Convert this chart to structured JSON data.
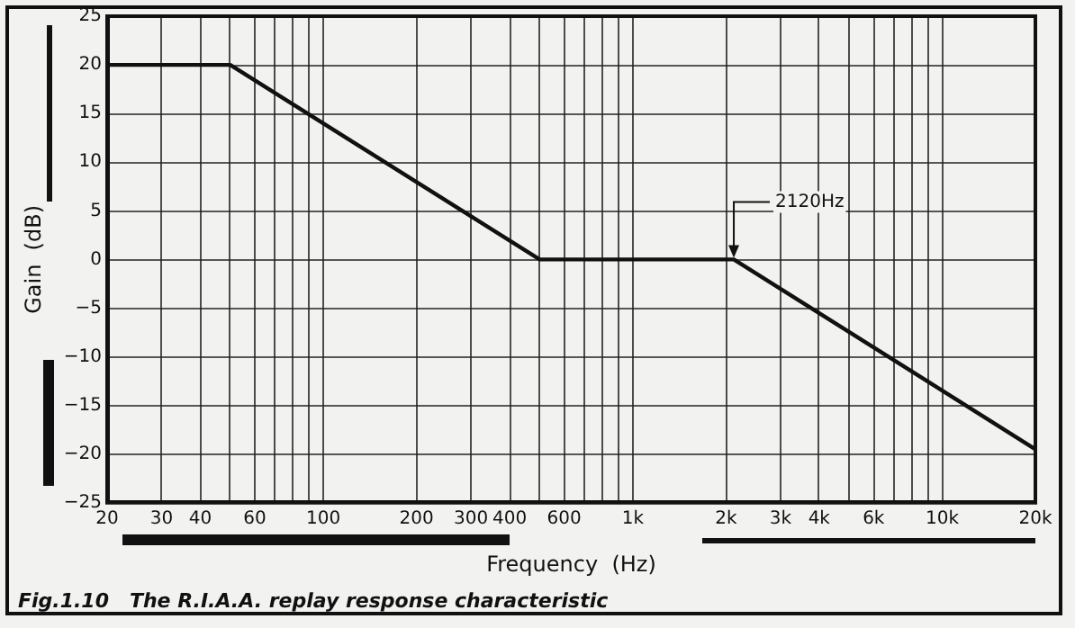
{
  "chart_data": {
    "type": "line",
    "title": "Fig.1.10   The R.I.A.A. replay response characteristic",
    "xlabel": "Frequency  (Hz)",
    "ylabel": "Gain  (dB)",
    "log": "x",
    "grid": true,
    "marker": "none",
    "line_style": "solid",
    "x": [
      20,
      50,
      500,
      2120,
      20000
    ],
    "series": [
      {
        "color": "#111111",
        "values": [
          20,
          20,
          0,
          0,
          -19.5
        ]
      }
    ],
    "xlim": [
      20,
      20000
    ],
    "xticks": [
      20,
      30,
      40,
      {
        "value": 50,
        "label": null
      },
      60,
      {
        "value": 70,
        "label": null
      },
      {
        "value": 80,
        "label": null
      },
      {
        "value": 90,
        "label": null
      },
      100,
      200,
      300,
      400,
      {
        "value": 500,
        "label": null
      },
      600,
      {
        "value": 700,
        "label": null
      },
      {
        "value": 800,
        "label": null
      },
      {
        "value": 900,
        "label": null
      },
      {
        "value": 1000,
        "label": "1k"
      },
      {
        "value": 2000,
        "label": "2k"
      },
      {
        "value": 3000,
        "label": "3k"
      },
      {
        "value": 4000,
        "label": "4k"
      },
      {
        "value": 5000,
        "label": null
      },
      {
        "value": 6000,
        "label": "6k"
      },
      {
        "value": 7000,
        "label": null
      },
      {
        "value": 8000,
        "label": null
      },
      {
        "value": 9000,
        "label": null
      },
      {
        "value": 10000,
        "label": "10k"
      },
      {
        "value": 20000,
        "label": "20k"
      }
    ],
    "ylim": [
      -25,
      25
    ],
    "yticks": [
      -25,
      -20,
      -15,
      -10,
      -5,
      0,
      5,
      10,
      15,
      20,
      25
    ],
    "annotations": [
      {
        "text": "2120Hz",
        "x": 2120,
        "y": 0
      }
    ]
  }
}
